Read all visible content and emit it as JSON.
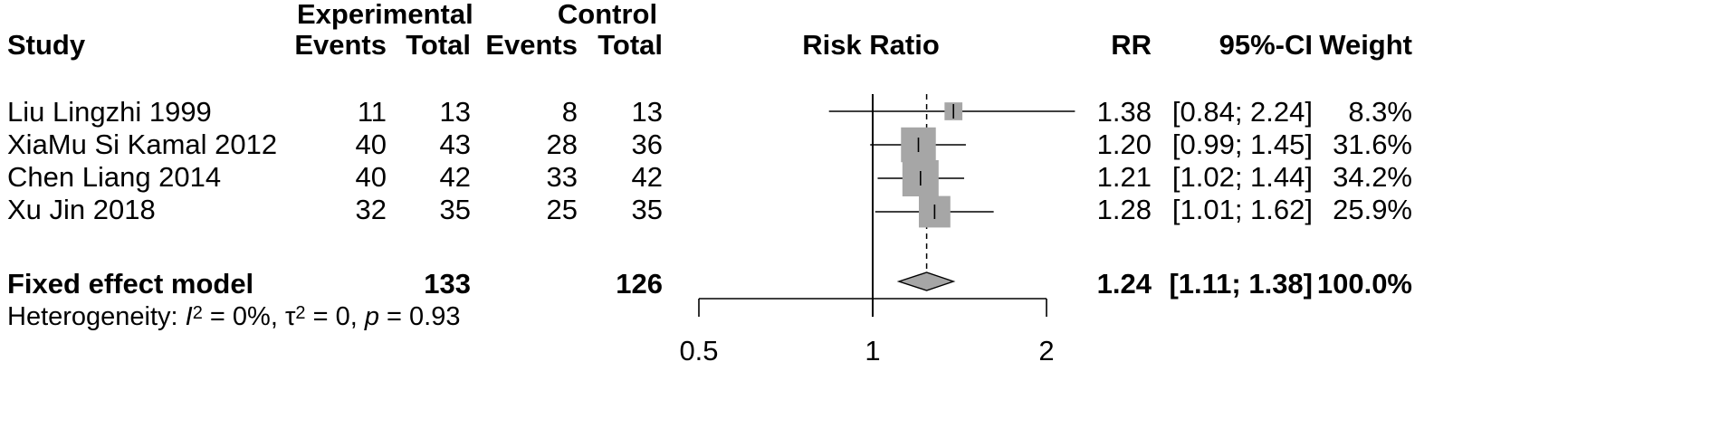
{
  "header": {
    "study": "Study",
    "experimental_group": "Experimental",
    "control_group": "Control",
    "exp_events": "Events",
    "exp_total": "Total",
    "ctrl_events": "Events",
    "ctrl_total": "Total",
    "plot_title": "Risk Ratio",
    "rr": "RR",
    "ci": "95%-CI",
    "weight": "Weight"
  },
  "studies": [
    {
      "name": "Liu Lingzhi 1999",
      "exp_events": "11",
      "exp_total": "13",
      "ctrl_events": "8",
      "ctrl_total": "13",
      "rr": "1.38",
      "ci": "[0.84; 2.24]",
      "weight": "8.3%"
    },
    {
      "name": "XiaMu Si Kamal 2012",
      "exp_events": "40",
      "exp_total": "43",
      "ctrl_events": "28",
      "ctrl_total": "36",
      "rr": "1.20",
      "ci": "[0.99; 1.45]",
      "weight": "31.6%"
    },
    {
      "name": "Chen Liang 2014",
      "exp_events": "40",
      "exp_total": "42",
      "ctrl_events": "33",
      "ctrl_total": "42",
      "rr": "1.21",
      "ci": "[1.02; 1.44]",
      "weight": "34.2%"
    },
    {
      "name": "Xu Jin 2018",
      "exp_events": "32",
      "exp_total": "35",
      "ctrl_events": "25",
      "ctrl_total": "35",
      "rr": "1.28",
      "ci": "[1.01; 1.62]",
      "weight": "25.9%"
    }
  ],
  "pooled": {
    "name": "Fixed effect model",
    "exp_total": "133",
    "ctrl_total": "126",
    "rr": "1.24",
    "ci": "[1.11; 1.38]",
    "weight": "100.0%"
  },
  "heterogeneity": {
    "prefix": "Heterogeneity: ",
    "i_symbol": "I",
    "sq": "2",
    "i_value": " = 0%, ",
    "tau_symbol": "τ",
    "tau_value": " = 0, ",
    "p_symbol": "p",
    "p_value": " = 0.93"
  },
  "chart_data": {
    "type": "forest",
    "scale": "log",
    "xlim": [
      0.5,
      2
    ],
    "reference_line": 1,
    "ticks": [
      0.5,
      1,
      2
    ],
    "tick_labels": [
      "0.5",
      "1",
      "2"
    ],
    "studies": [
      {
        "rr": 1.38,
        "lower": 0.84,
        "upper": 2.24,
        "weight": 8.3
      },
      {
        "rr": 1.2,
        "lower": 0.99,
        "upper": 1.45,
        "weight": 31.6
      },
      {
        "rr": 1.21,
        "lower": 1.02,
        "upper": 1.44,
        "weight": 34.2
      },
      {
        "rr": 1.28,
        "lower": 1.01,
        "upper": 1.62,
        "weight": 25.9
      }
    ],
    "pooled": {
      "rr": 1.24,
      "lower": 1.11,
      "upper": 1.38
    },
    "colors": {
      "square": "#a6a6a6",
      "diamond": "#a6a6a6",
      "line": "#000000"
    }
  }
}
